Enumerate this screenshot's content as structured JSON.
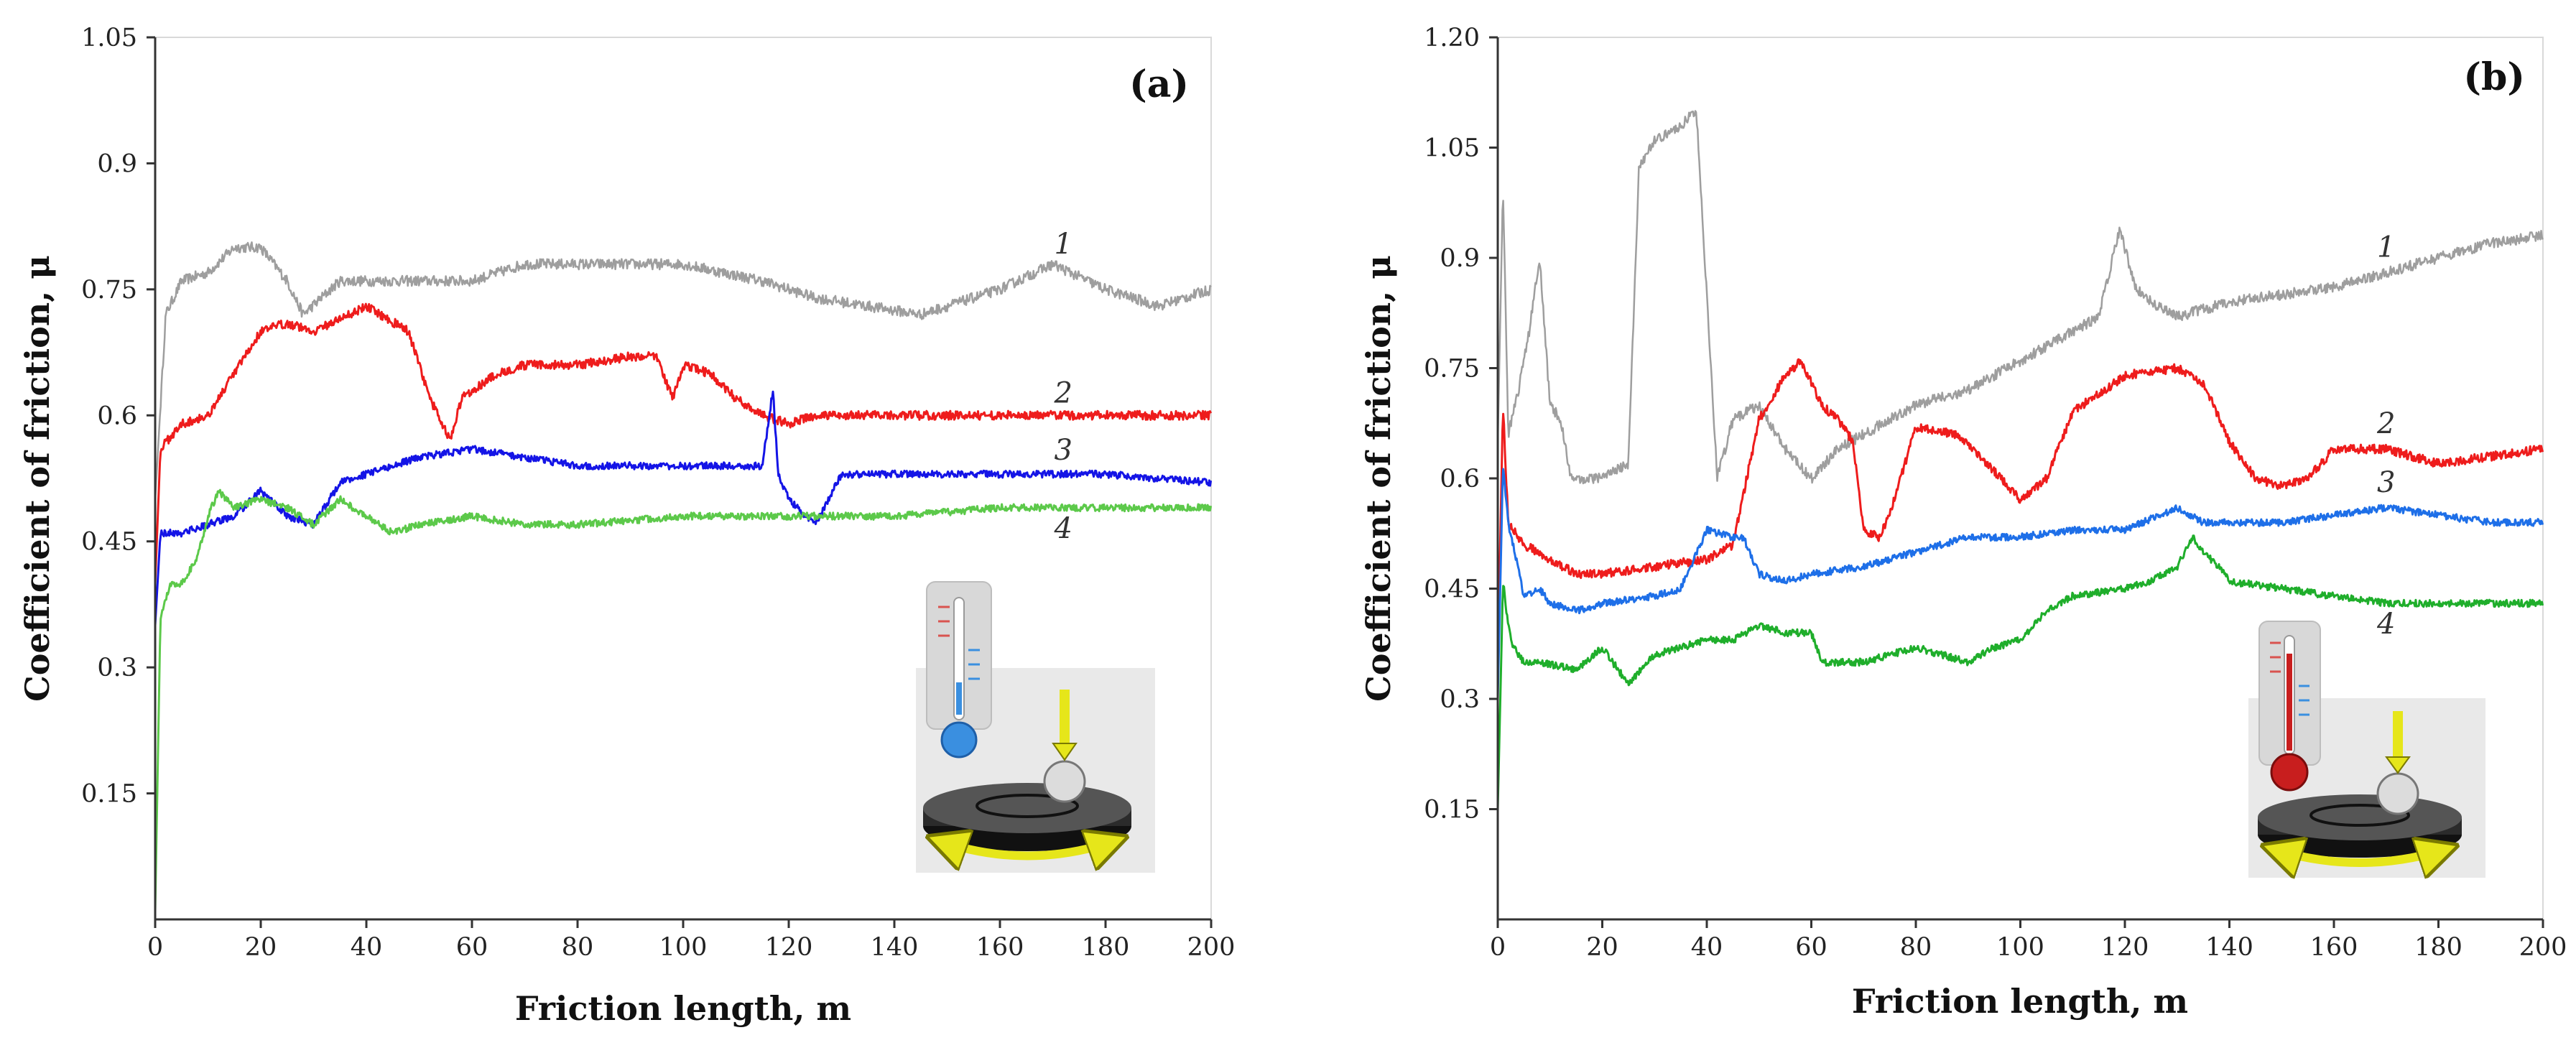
{
  "chart_data": [
    {
      "type": "line",
      "panel_label": "(a)",
      "xlabel": "Friction length, m",
      "ylabel": "Coefficient of friction, μ",
      "xlim": [
        0,
        200
      ],
      "ylim": [
        0,
        1.05
      ],
      "x_ticks": [
        "0",
        "20",
        "40",
        "60",
        "80",
        "100",
        "120",
        "140",
        "160",
        "180",
        "200"
      ],
      "y_ticks": [
        "0.15",
        "0.3",
        "0.45",
        "0.6",
        "0.75",
        "0.9",
        "1.05"
      ],
      "grid": false,
      "inset": "cold thermometer above pin-on-disc tribometer",
      "series": [
        {
          "label": "1",
          "color": "#9e9e9e",
          "x": [
            0,
            2,
            5,
            10,
            15,
            20,
            25,
            28,
            35,
            45,
            60,
            70,
            85,
            100,
            115,
            125,
            135,
            145,
            160,
            170,
            180,
            190,
            200
          ],
          "y": [
            0.5,
            0.72,
            0.76,
            0.77,
            0.8,
            0.8,
            0.76,
            0.72,
            0.76,
            0.76,
            0.76,
            0.78,
            0.78,
            0.78,
            0.76,
            0.74,
            0.73,
            0.72,
            0.75,
            0.78,
            0.75,
            0.73,
            0.75
          ]
        },
        {
          "label": "2",
          "color": "#ee1c1c",
          "x": [
            0,
            1,
            5,
            10,
            15,
            20,
            25,
            30,
            40,
            48,
            52,
            56,
            58,
            60,
            65,
            70,
            80,
            90,
            95,
            98,
            100,
            105,
            110,
            115,
            120,
            125,
            140,
            160,
            180,
            200
          ],
          "y": [
            0.4,
            0.56,
            0.59,
            0.6,
            0.65,
            0.7,
            0.71,
            0.7,
            0.73,
            0.7,
            0.62,
            0.57,
            0.62,
            0.63,
            0.65,
            0.66,
            0.66,
            0.67,
            0.67,
            0.62,
            0.66,
            0.65,
            0.62,
            0.6,
            0.59,
            0.6,
            0.6,
            0.6,
            0.6,
            0.6
          ]
        },
        {
          "label": "3",
          "color": "#1414e6",
          "x": [
            0,
            1,
            5,
            10,
            15,
            20,
            25,
            30,
            35,
            40,
            50,
            60,
            70,
            80,
            90,
            100,
            110,
            115,
            117,
            118,
            120,
            125,
            130,
            140,
            160,
            180,
            200
          ],
          "y": [
            0.35,
            0.46,
            0.46,
            0.47,
            0.48,
            0.51,
            0.48,
            0.47,
            0.52,
            0.53,
            0.55,
            0.56,
            0.55,
            0.54,
            0.54,
            0.54,
            0.54,
            0.54,
            0.63,
            0.53,
            0.5,
            0.47,
            0.53,
            0.53,
            0.53,
            0.53,
            0.52
          ]
        },
        {
          "label": "4",
          "color": "#5cc94a",
          "x": [
            0,
            1,
            3,
            5,
            8,
            10,
            12,
            15,
            20,
            25,
            30,
            35,
            40,
            45,
            50,
            60,
            70,
            80,
            100,
            120,
            140,
            160,
            180,
            200
          ],
          "y": [
            0.01,
            0.36,
            0.4,
            0.4,
            0.43,
            0.48,
            0.51,
            0.49,
            0.5,
            0.49,
            0.47,
            0.5,
            0.48,
            0.46,
            0.47,
            0.48,
            0.47,
            0.47,
            0.48,
            0.48,
            0.48,
            0.49,
            0.49,
            0.49
          ]
        }
      ]
    },
    {
      "type": "line",
      "panel_label": "(b)",
      "xlabel": "Friction length, m",
      "ylabel": "Coefficient of friction, μ",
      "xlim": [
        0,
        200
      ],
      "ylim": [
        0,
        1.2
      ],
      "x_ticks": [
        "0",
        "20",
        "40",
        "60",
        "80",
        "100",
        "120",
        "140",
        "160",
        "180",
        "200"
      ],
      "y_ticks": [
        "0.15",
        "0.3",
        "0.45",
        "0.6",
        "0.75",
        "0.9",
        "1.05",
        "1.20"
      ],
      "grid": false,
      "inset": "hot thermometer above pin-on-disc tribometer",
      "series": [
        {
          "label": "1",
          "color": "#9e9e9e",
          "x": [
            0,
            1,
            2,
            4,
            6,
            8,
            10,
            12,
            14,
            20,
            25,
            27,
            30,
            35,
            38,
            40,
            42,
            45,
            50,
            55,
            60,
            65,
            70,
            80,
            90,
            100,
            110,
            115,
            119,
            122,
            125,
            130,
            140,
            150,
            160,
            170,
            180,
            190,
            200
          ],
          "y": [
            0.65,
            1.0,
            0.66,
            0.72,
            0.8,
            0.9,
            0.7,
            0.68,
            0.6,
            0.6,
            0.62,
            1.02,
            1.06,
            1.08,
            1.1,
            0.85,
            0.6,
            0.68,
            0.7,
            0.64,
            0.6,
            0.64,
            0.66,
            0.7,
            0.72,
            0.76,
            0.8,
            0.82,
            0.94,
            0.86,
            0.84,
            0.82,
            0.84,
            0.85,
            0.86,
            0.88,
            0.9,
            0.92,
            0.93
          ]
        },
        {
          "label": "2",
          "color": "#ee1c1c",
          "x": [
            0,
            1,
            2,
            5,
            10,
            15,
            20,
            30,
            40,
            45,
            50,
            55,
            58,
            62,
            65,
            68,
            70,
            73,
            75,
            80,
            88,
            95,
            100,
            105,
            110,
            120,
            130,
            135,
            140,
            145,
            150,
            155,
            160,
            170,
            180,
            190,
            200
          ],
          "y": [
            0.35,
            0.7,
            0.54,
            0.51,
            0.49,
            0.47,
            0.47,
            0.48,
            0.49,
            0.51,
            0.68,
            0.74,
            0.76,
            0.7,
            0.68,
            0.65,
            0.53,
            0.52,
            0.55,
            0.67,
            0.66,
            0.61,
            0.57,
            0.6,
            0.69,
            0.74,
            0.75,
            0.73,
            0.65,
            0.6,
            0.59,
            0.6,
            0.64,
            0.64,
            0.62,
            0.63,
            0.64
          ]
        },
        {
          "label": "3",
          "color": "#1e6fe8",
          "x": [
            0,
            1,
            2,
            5,
            8,
            10,
            15,
            20,
            30,
            35,
            40,
            45,
            47,
            50,
            55,
            60,
            70,
            80,
            90,
            100,
            110,
            120,
            130,
            135,
            140,
            150,
            160,
            170,
            180,
            190,
            200
          ],
          "y": [
            0.3,
            0.62,
            0.54,
            0.44,
            0.45,
            0.43,
            0.42,
            0.43,
            0.44,
            0.45,
            0.53,
            0.52,
            0.52,
            0.47,
            0.46,
            0.47,
            0.48,
            0.5,
            0.52,
            0.52,
            0.53,
            0.53,
            0.56,
            0.54,
            0.54,
            0.54,
            0.55,
            0.56,
            0.55,
            0.54,
            0.54
          ]
        },
        {
          "label": "4",
          "color": "#1fae2b",
          "x": [
            0,
            1,
            2,
            3,
            5,
            8,
            15,
            20,
            25,
            30,
            40,
            45,
            50,
            55,
            60,
            62,
            70,
            80,
            90,
            95,
            100,
            105,
            110,
            120,
            125,
            130,
            133,
            135,
            138,
            140,
            150,
            160,
            170,
            180,
            190,
            200
          ],
          "y": [
            0.15,
            0.46,
            0.4,
            0.37,
            0.35,
            0.35,
            0.34,
            0.37,
            0.32,
            0.36,
            0.38,
            0.38,
            0.4,
            0.39,
            0.39,
            0.35,
            0.35,
            0.37,
            0.35,
            0.37,
            0.38,
            0.42,
            0.44,
            0.45,
            0.46,
            0.48,
            0.52,
            0.5,
            0.48,
            0.46,
            0.45,
            0.44,
            0.43,
            0.43,
            0.43,
            0.43
          ]
        }
      ]
    }
  ]
}
